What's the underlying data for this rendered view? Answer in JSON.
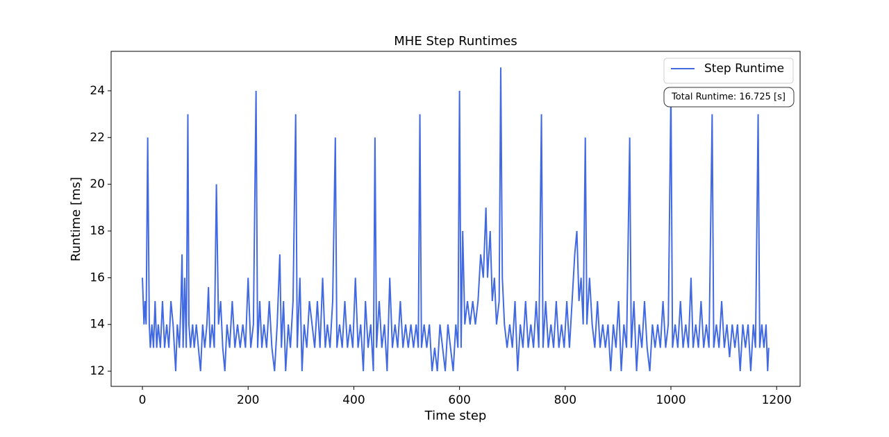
{
  "chart_data": {
    "type": "line",
    "title": "MHE Step Runtimes",
    "xlabel": "Time step",
    "ylabel": "Runtime [ms]",
    "annotation": "Total Runtime: 16.725 [s]",
    "legend": "upper right",
    "x": [
      0,
      3,
      5,
      7,
      10,
      13,
      15,
      18,
      21,
      24,
      27,
      30,
      34,
      38,
      42,
      46,
      50,
      54,
      58,
      63,
      66,
      70,
      73,
      75,
      77,
      80,
      83,
      86,
      88,
      91,
      95,
      98,
      102,
      106,
      110,
      114,
      118,
      122,
      125,
      128,
      132,
      136,
      140,
      144,
      148,
      152,
      156,
      160,
      165,
      170,
      175,
      180,
      185,
      190,
      195,
      200,
      205,
      210,
      215,
      218,
      222,
      226,
      230,
      235,
      240,
      245,
      250,
      255,
      260,
      263,
      267,
      271,
      276,
      280,
      285,
      290,
      293,
      298,
      302,
      306,
      311,
      316,
      321,
      326,
      331,
      336,
      341,
      346,
      350,
      355,
      360,
      365,
      368,
      373,
      378,
      383,
      388,
      393,
      398,
      403,
      408,
      413,
      418,
      422,
      427,
      432,
      437,
      440,
      443,
      448,
      453,
      458,
      463,
      468,
      473,
      478,
      483,
      488,
      493,
      498,
      503,
      508,
      513,
      518,
      522,
      525,
      528,
      533,
      538,
      543,
      548,
      553,
      558,
      563,
      568,
      573,
      578,
      583,
      588,
      593,
      597,
      600,
      603,
      606,
      610,
      615,
      620,
      625,
      630,
      635,
      640,
      645,
      650,
      653,
      658,
      662,
      666,
      670,
      675,
      678,
      681,
      685,
      690,
      695,
      700,
      705,
      710,
      715,
      720,
      725,
      730,
      735,
      740,
      745,
      750,
      755,
      758,
      763,
      768,
      773,
      778,
      783,
      788,
      793,
      798,
      803,
      808,
      813,
      818,
      822,
      826,
      830,
      834,
      838,
      841,
      846,
      851,
      856,
      861,
      866,
      871,
      876,
      881,
      886,
      891,
      896,
      901,
      906,
      911,
      916,
      922,
      925,
      930,
      935,
      940,
      945,
      950,
      955,
      960,
      965,
      970,
      975,
      980,
      985,
      990,
      995,
      1000,
      1003,
      1008,
      1013,
      1018,
      1023,
      1028,
      1033,
      1038,
      1042,
      1047,
      1052,
      1057,
      1062,
      1067,
      1072,
      1078,
      1081,
      1086,
      1091,
      1096,
      1101,
      1106,
      1111,
      1116,
      1121,
      1126,
      1131,
      1136,
      1141,
      1146,
      1151,
      1156,
      1160,
      1165,
      1168,
      1172,
      1176,
      1180,
      1183,
      1185
    ],
    "series": [
      {
        "name": "Step Runtime",
        "color": "#4169e1",
        "values": [
          16,
          14,
          15,
          14,
          22,
          14,
          13,
          14,
          13,
          15,
          13,
          14,
          13,
          15,
          13,
          14,
          13,
          15,
          14,
          12,
          14,
          13,
          15,
          17,
          13,
          16,
          13,
          23,
          14,
          13,
          14,
          13,
          14,
          13,
          12,
          14,
          13,
          14,
          15.6,
          13,
          14,
          13,
          20,
          14,
          15,
          13,
          12,
          14,
          13,
          15,
          13,
          14,
          13,
          14,
          13,
          16,
          13,
          14,
          24,
          13,
          15,
          13,
          14,
          13,
          15,
          13,
          12,
          14,
          17,
          13,
          15,
          12,
          14,
          13,
          15,
          23,
          13,
          16,
          12,
          14,
          13,
          15,
          14,
          13,
          15,
          13,
          16,
          13,
          14,
          13,
          15,
          22,
          13,
          14,
          13,
          15,
          13,
          14,
          13,
          16,
          13,
          14,
          12,
          15,
          13,
          14,
          12,
          22,
          13,
          15,
          13,
          14,
          12,
          16,
          13,
          14,
          13,
          15,
          13,
          14,
          13,
          14,
          13,
          14,
          13,
          23,
          13,
          14,
          13,
          14,
          12,
          13,
          12,
          14,
          13,
          12,
          14,
          13,
          12,
          14,
          13,
          24,
          13,
          18,
          14,
          15,
          14,
          15,
          14,
          15,
          17,
          16,
          19,
          16,
          18,
          15,
          16,
          14,
          15,
          25,
          16,
          14,
          13,
          14,
          13,
          15,
          12,
          14,
          13,
          15,
          13,
          14,
          13,
          15,
          13,
          23,
          13,
          15,
          13,
          14,
          13,
          15,
          13,
          14,
          13,
          15,
          13,
          15,
          17,
          18,
          15,
          16,
          14,
          22,
          14,
          16,
          14,
          13,
          15,
          13,
          14,
          13,
          14,
          12,
          14,
          13,
          15,
          12,
          14,
          13,
          22,
          13,
          15,
          12,
          14,
          13,
          15,
          13,
          12,
          14,
          13,
          14,
          13,
          15,
          13,
          14,
          24,
          13,
          14,
          13,
          15,
          13,
          14,
          13,
          16,
          13,
          14,
          13,
          15,
          13,
          14,
          13,
          23,
          13,
          14,
          13,
          15,
          13,
          14,
          12.6,
          14,
          13,
          14,
          12,
          14,
          13,
          14,
          12,
          14,
          13,
          23,
          13,
          14,
          13,
          14,
          12,
          13
        ]
      }
    ],
    "xlim": [
      -59.2,
      1244.4
    ],
    "ylim": [
      11.35,
      25.69
    ],
    "xticks": [
      0,
      200,
      400,
      600,
      800,
      1000,
      1200
    ],
    "yticks": [
      12,
      14,
      16,
      18,
      20,
      22,
      24
    ]
  }
}
